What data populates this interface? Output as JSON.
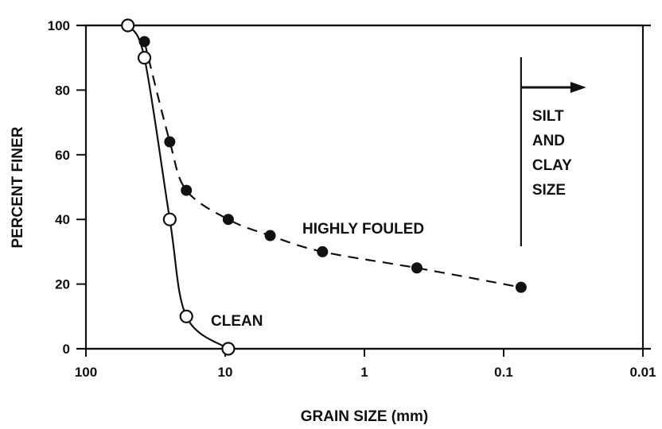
{
  "chart_data": {
    "type": "line",
    "title": "",
    "xlabel": "GRAIN SIZE (mm)",
    "ylabel": "PERCENT FINER",
    "x_scale": "log",
    "x_reversed": true,
    "xlim": [
      100,
      0.01
    ],
    "ylim": [
      0,
      100
    ],
    "x_ticks": [
      100,
      10,
      1,
      0.1,
      0.01
    ],
    "x_tick_labels": [
      "100",
      "10",
      "1",
      "0.1",
      "0.01"
    ],
    "y_ticks": [
      0,
      20,
      40,
      60,
      80,
      100
    ],
    "y_tick_labels": [
      "0",
      "20",
      "40",
      "60",
      "80",
      "100"
    ],
    "grid": false,
    "series": [
      {
        "name": "CLEAN",
        "marker": "open-circle",
        "line_style": "solid",
        "x": [
          50,
          38,
          25,
          19,
          9.5
        ],
        "y": [
          100,
          90,
          40,
          10,
          0
        ]
      },
      {
        "name": "HIGHLY FOULED",
        "marker": "filled-circle",
        "line_style": "dashed",
        "x": [
          38,
          25,
          19,
          9.5,
          4.75,
          2,
          0.42,
          0.075
        ],
        "y": [
          95,
          64,
          49,
          40,
          35,
          30,
          25,
          19
        ]
      }
    ],
    "annotations": [
      {
        "text_lines": [
          "SILT",
          "AND",
          "CLAY",
          "SIZE"
        ],
        "x": 0.075
      }
    ]
  }
}
